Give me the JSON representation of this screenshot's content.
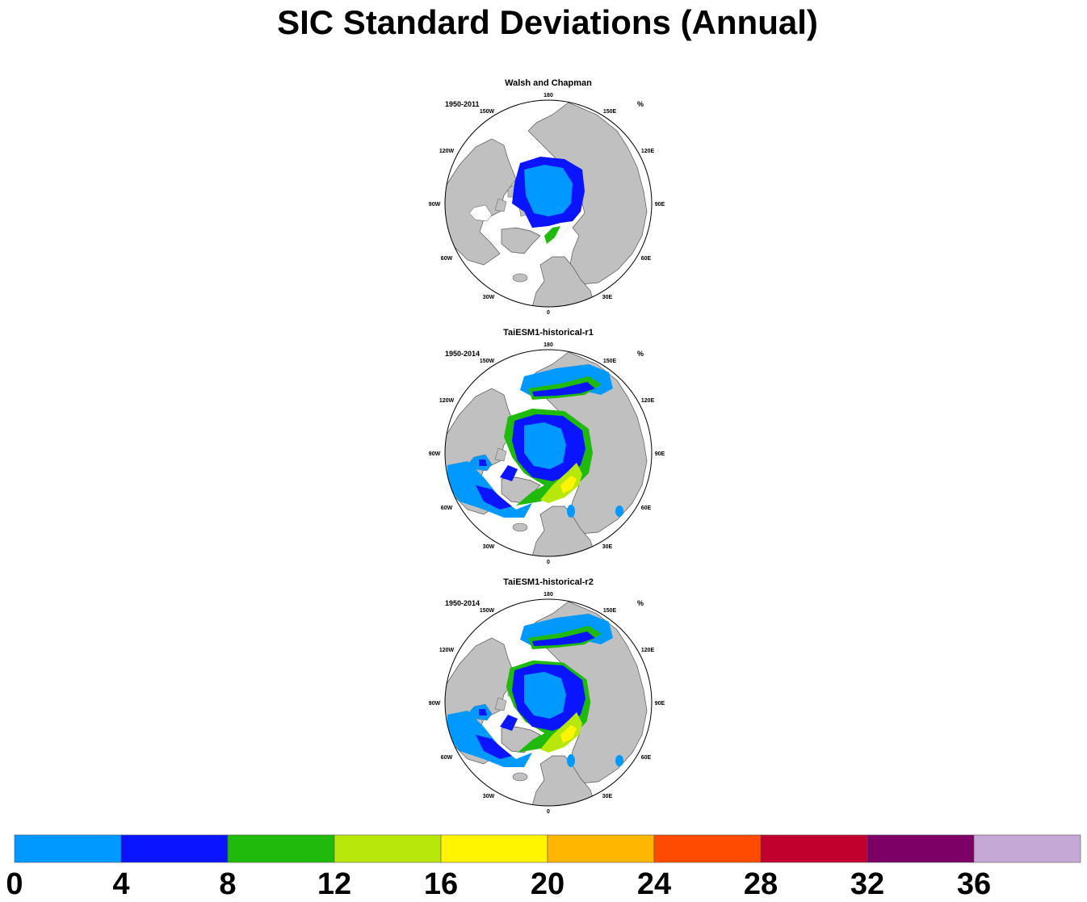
{
  "title": "SIC Standard Deviations (Annual)",
  "chart_data": [
    {
      "type": "polar-map",
      "title": "Walsh and Chapman",
      "period": "1950-2011",
      "units": "%",
      "lon_labels": [
        "180",
        "150E",
        "120E",
        "90E",
        "60E",
        "30E",
        "0",
        "30W",
        "60W",
        "90W",
        "120W",
        "150W"
      ]
    },
    {
      "type": "polar-map",
      "title": "TaiESM1-historical-r1",
      "period": "1950-2014",
      "units": "%",
      "lon_labels": [
        "180",
        "150E",
        "120E",
        "90E",
        "60E",
        "30E",
        "0",
        "30W",
        "60W",
        "90W",
        "120W",
        "150W"
      ]
    },
    {
      "type": "polar-map",
      "title": "TaiESM1-historical-r2",
      "period": "1950-2014",
      "units": "%",
      "lon_labels": [
        "180",
        "150E",
        "120E",
        "90E",
        "60E",
        "30E",
        "0",
        "30W",
        "60W",
        "90W",
        "120W",
        "150W"
      ]
    }
  ],
  "colorbar": {
    "ticks": [
      "0",
      "4",
      "8",
      "12",
      "16",
      "20",
      "24",
      "28",
      "32",
      "36"
    ],
    "colors": [
      "#0099ff",
      "#0a14ff",
      "#1fba0b",
      "#b8e80b",
      "#fff500",
      "#ffb600",
      "#ff4a00",
      "#c2002e",
      "#7d0066",
      "#c6a8d6"
    ]
  },
  "colors": {
    "land": "#c0c0c0",
    "ocean": "#ffffff"
  }
}
